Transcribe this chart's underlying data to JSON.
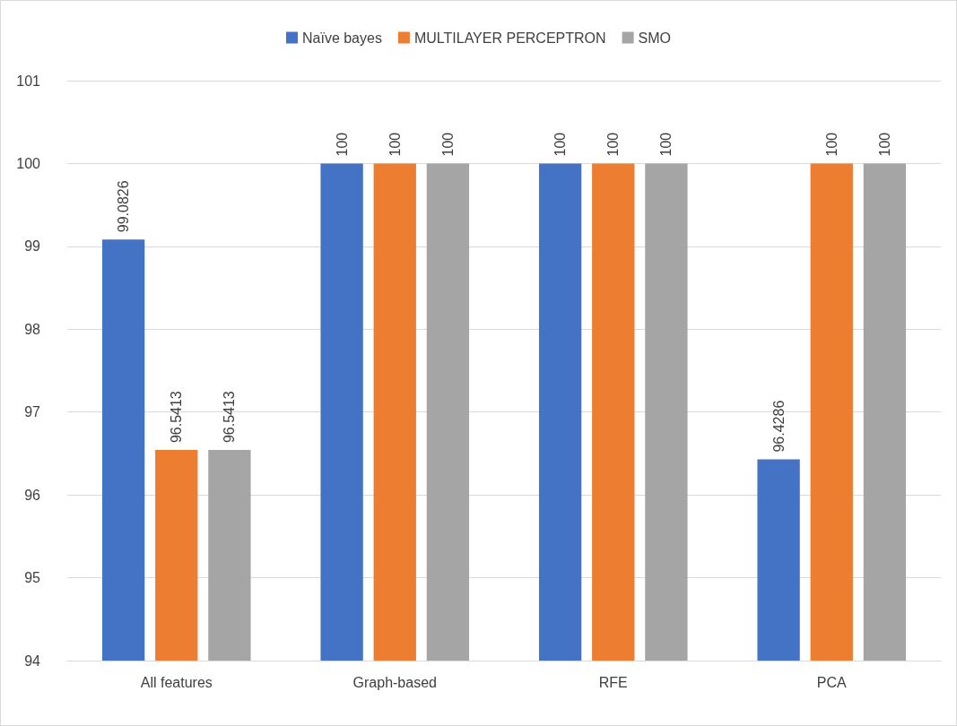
{
  "chart_data": {
    "type": "bar",
    "categories": [
      "All features",
      "Graph-based",
      "RFE",
      "PCA"
    ],
    "series": [
      {
        "name": "Naïve bayes",
        "color": "#4472c4",
        "values": [
          99.0826,
          100,
          100,
          96.4286
        ]
      },
      {
        "name": "MULTILAYER PERCEPTRON",
        "color": "#ed7d31",
        "values": [
          96.5413,
          100,
          100,
          100
        ]
      },
      {
        "name": "SMO",
        "color": "#a5a5a5",
        "values": [
          96.5413,
          100,
          100,
          100
        ]
      }
    ],
    "ylim": [
      94,
      101
    ],
    "yticks": [
      94,
      95,
      96,
      97,
      98,
      99,
      100,
      101
    ],
    "grid": "y",
    "legend": "top",
    "data_labels": true
  }
}
